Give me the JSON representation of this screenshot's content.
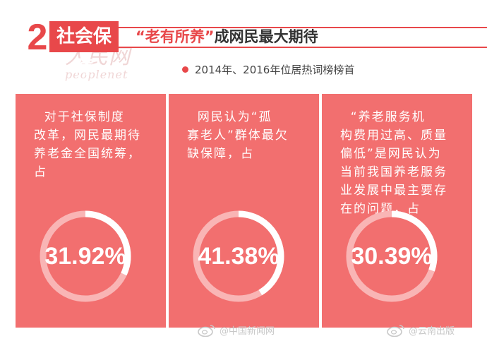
{
  "header": {
    "number": "2",
    "title": "社会保障",
    "banner_highlight": "“老有所养”",
    "banner_rest": "成网民最大期待"
  },
  "subtitle": "2014年、2016年位居热词榜榜首",
  "cards": [
    {
      "text": "  对于社保制度\n改革，网民最期待\n养老金全国统筹，\n占",
      "value": "31.92%",
      "fraction": 0.3192
    },
    {
      "text": "  网民认为“孤\n寡老人”群体最欠\n缺保障，占",
      "value": "41.38%",
      "fraction": 0.4138
    },
    {
      "text": "  “养老服务机\n构费用过高、质量\n偏低”是网民认为\n当前我国养老服务\n业发展中最主要存\n在的问题，占",
      "value": "30.39%",
      "fraction": 0.3039
    }
  ],
  "watermarks": [
    {
      "cn": "人民网",
      "en": "peoplenet"
    },
    {
      "cn": "人民网",
      "en": "peoplenet"
    }
  ],
  "footer": {
    "left": "@中国新闻网",
    "right": "@云南出版"
  },
  "colors": {
    "accent": "#e8484a",
    "card": "#f26f6f",
    "ring_track": "#f9b5b5"
  }
}
